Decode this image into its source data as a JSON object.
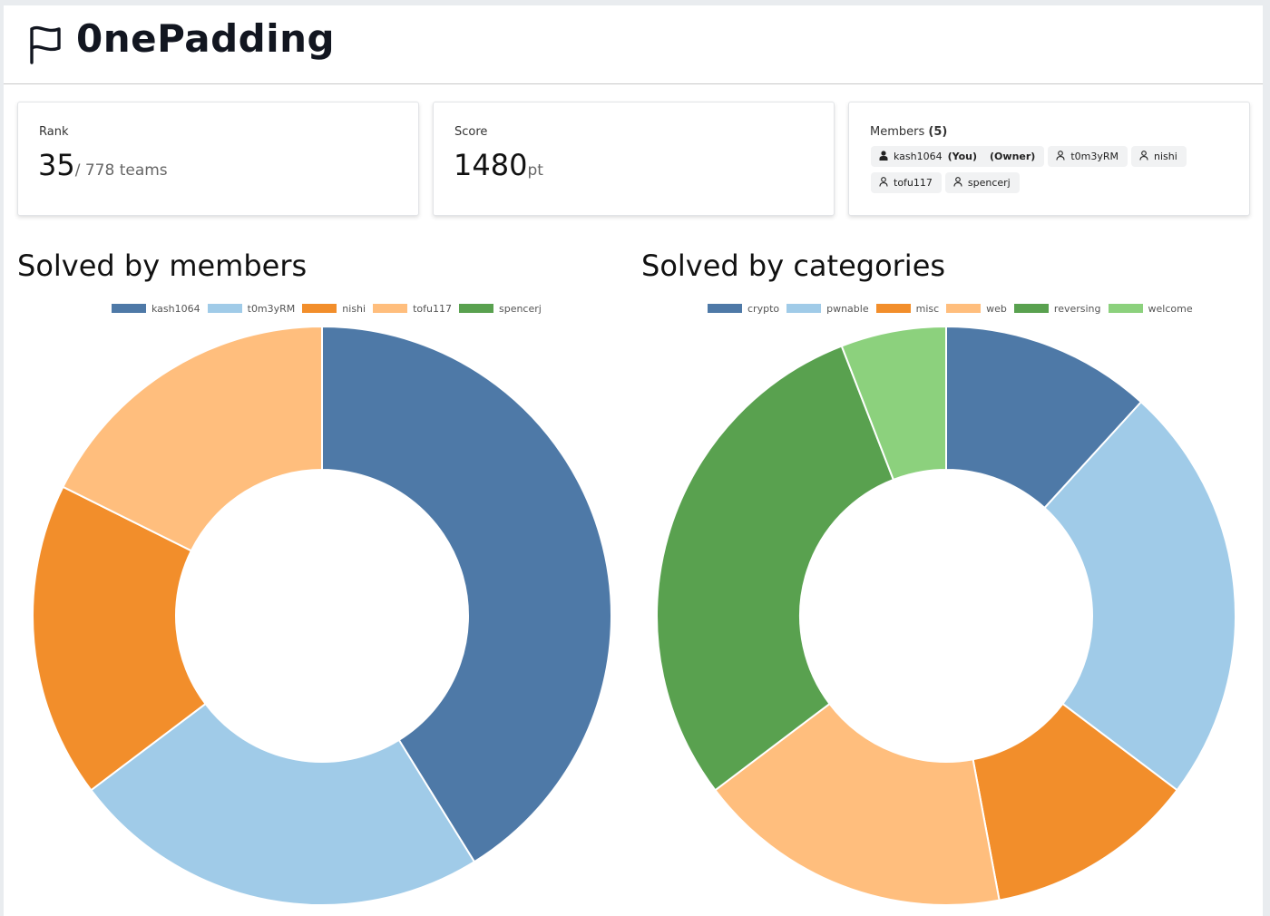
{
  "team": {
    "name": "0nePadding"
  },
  "stats": {
    "rank_label": "Rank",
    "rank": "35",
    "rank_suffix": "/ 778 teams",
    "score_label": "Score",
    "score": "1480",
    "score_unit": "pt"
  },
  "members": {
    "label": "Members",
    "count": "(5)",
    "list": [
      {
        "name": "kash1064",
        "you": "(You)",
        "owner": "(Owner)",
        "icon": "user-filled-icon"
      },
      {
        "name": "t0m3yRM",
        "icon": "user-outline-icon"
      },
      {
        "name": "nishi",
        "icon": "user-outline-icon"
      },
      {
        "name": "tofu117",
        "icon": "user-outline-icon"
      },
      {
        "name": "spencerj",
        "icon": "user-outline-icon"
      }
    ]
  },
  "colors": [
    "#4e79a7",
    "#a0cbe8",
    "#f28e2b",
    "#ffbe7d",
    "#59a14f",
    "#8cd17d"
  ],
  "chart_data": [
    {
      "type": "pie",
      "title": "Solved by members",
      "labels": [
        "kash1064",
        "t0m3yRM",
        "nishi",
        "tofu117",
        "spencerj"
      ],
      "values": [
        7,
        4,
        3,
        3,
        0
      ],
      "legend": "top"
    },
    {
      "type": "pie",
      "title": "Solved by categories",
      "labels": [
        "crypto",
        "pwnable",
        "misc",
        "web",
        "reversing",
        "welcome"
      ],
      "values": [
        2,
        4,
        2,
        3,
        5,
        1
      ],
      "legend": "top"
    }
  ]
}
